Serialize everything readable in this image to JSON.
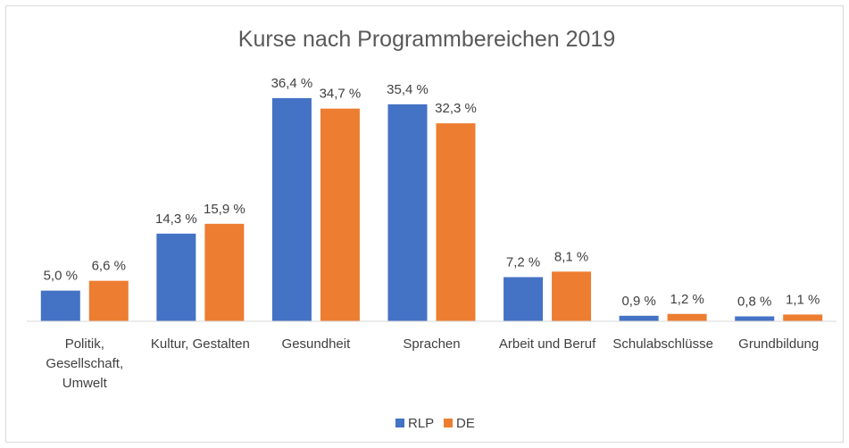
{
  "chart_data": {
    "type": "bar",
    "title": "Kurse nach Programmbereichen 2019",
    "categories": [
      "Politik, Gesellschaft, Umwelt",
      "Kultur, Gestalten",
      "Gesundheit",
      "Sprachen",
      "Arbeit und Beruf",
      "Schulabschlüsse",
      "Grundbildung"
    ],
    "series": [
      {
        "name": "RLP",
        "color": "#4472c4",
        "values": [
          5.0,
          14.3,
          36.4,
          35.4,
          7.2,
          0.9,
          0.8
        ],
        "value_labels": [
          "5,0 %",
          "14,3 %",
          "36,4 %",
          "35,4 %",
          "7,2 %",
          "0,9 %",
          "0,8 %"
        ]
      },
      {
        "name": "DE",
        "color": "#ed7d31",
        "values": [
          6.6,
          15.9,
          34.7,
          32.3,
          8.1,
          1.2,
          1.1
        ],
        "value_labels": [
          "6,6 %",
          "15,9 %",
          "34,7 %",
          "32,3 %",
          "8,1 %",
          "1,2 %",
          "1,1 %"
        ]
      }
    ],
    "legend": "bottom"
  }
}
